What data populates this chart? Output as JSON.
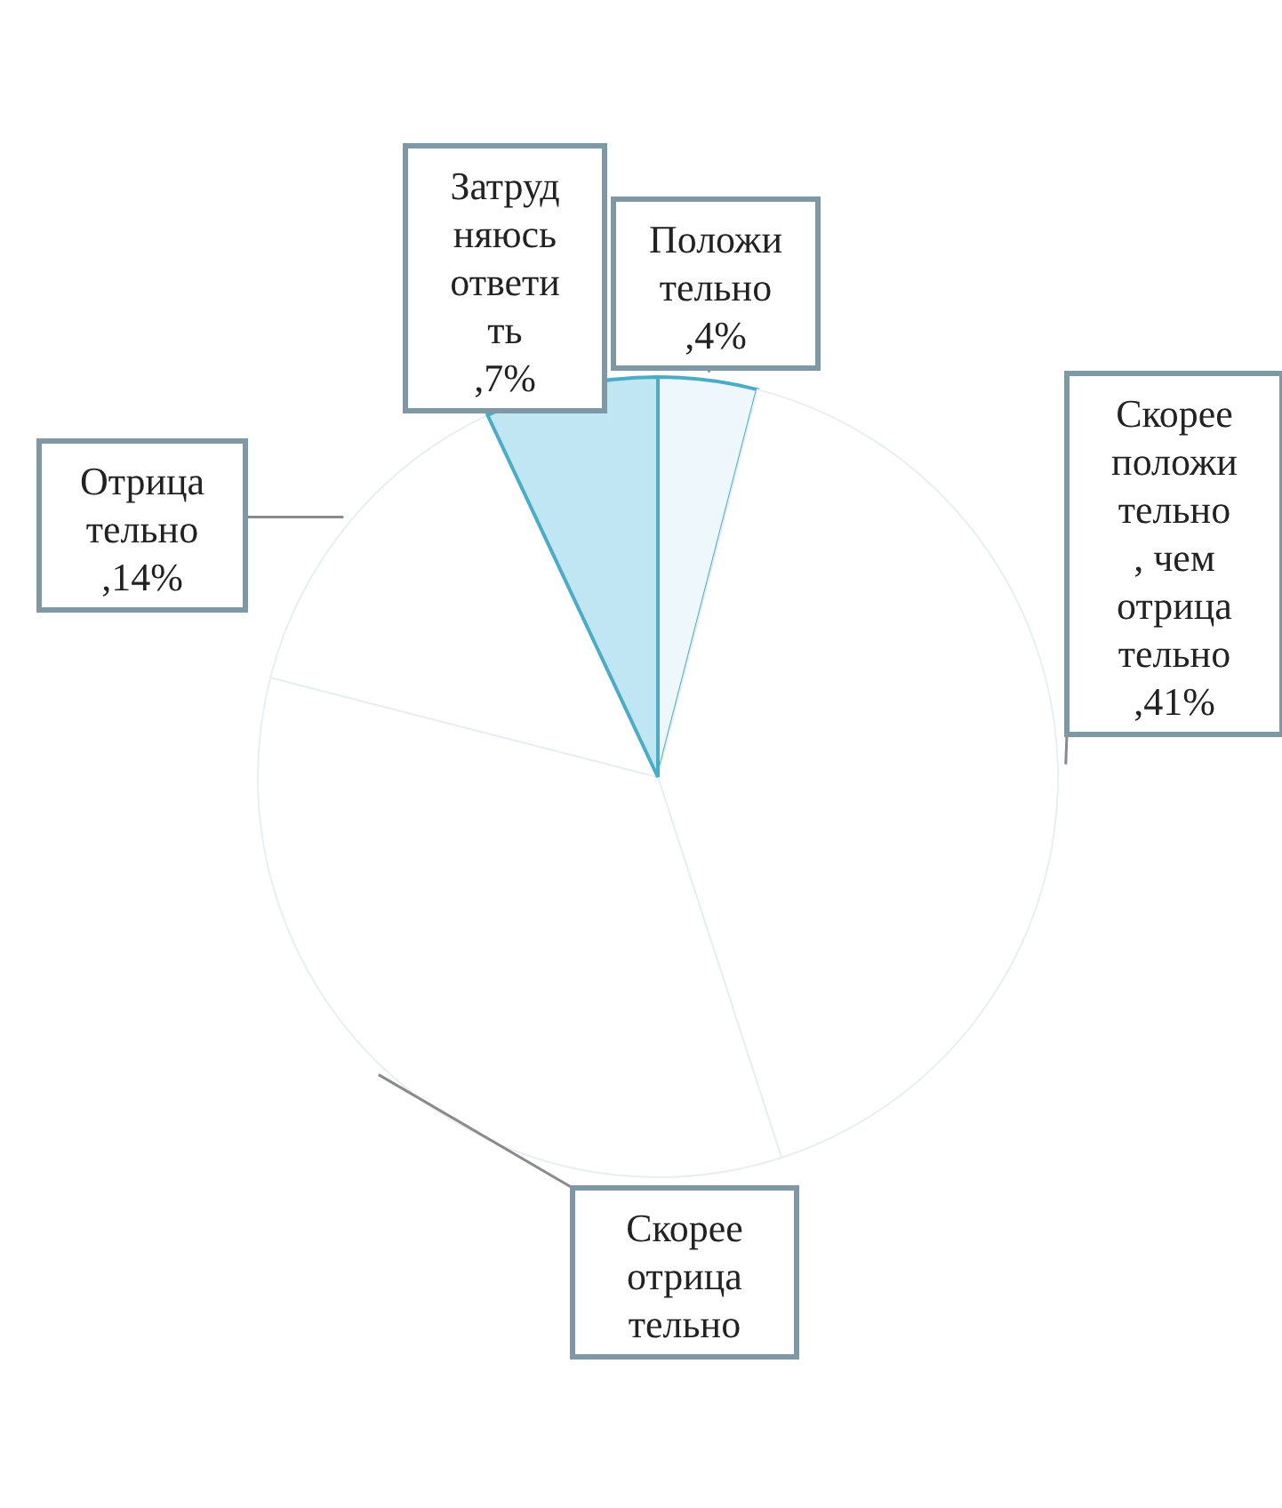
{
  "chart_data": {
    "type": "pie",
    "categories": [
      "Положительно",
      "Скорее положительно, чем отрицательно",
      "Скорее отрицательно",
      "Отрицательно",
      "Затрудняюсь ответить"
    ],
    "values": [
      4,
      41,
      34,
      14,
      7
    ],
    "value_labels": [
      ",4%",
      ",41%",
      null,
      ",14%",
      ",7%"
    ],
    "colors": [
      "#eef8fc",
      "#ffffff",
      "#ffffff",
      "#ffffff",
      "#bfe6f2"
    ]
  }
}
